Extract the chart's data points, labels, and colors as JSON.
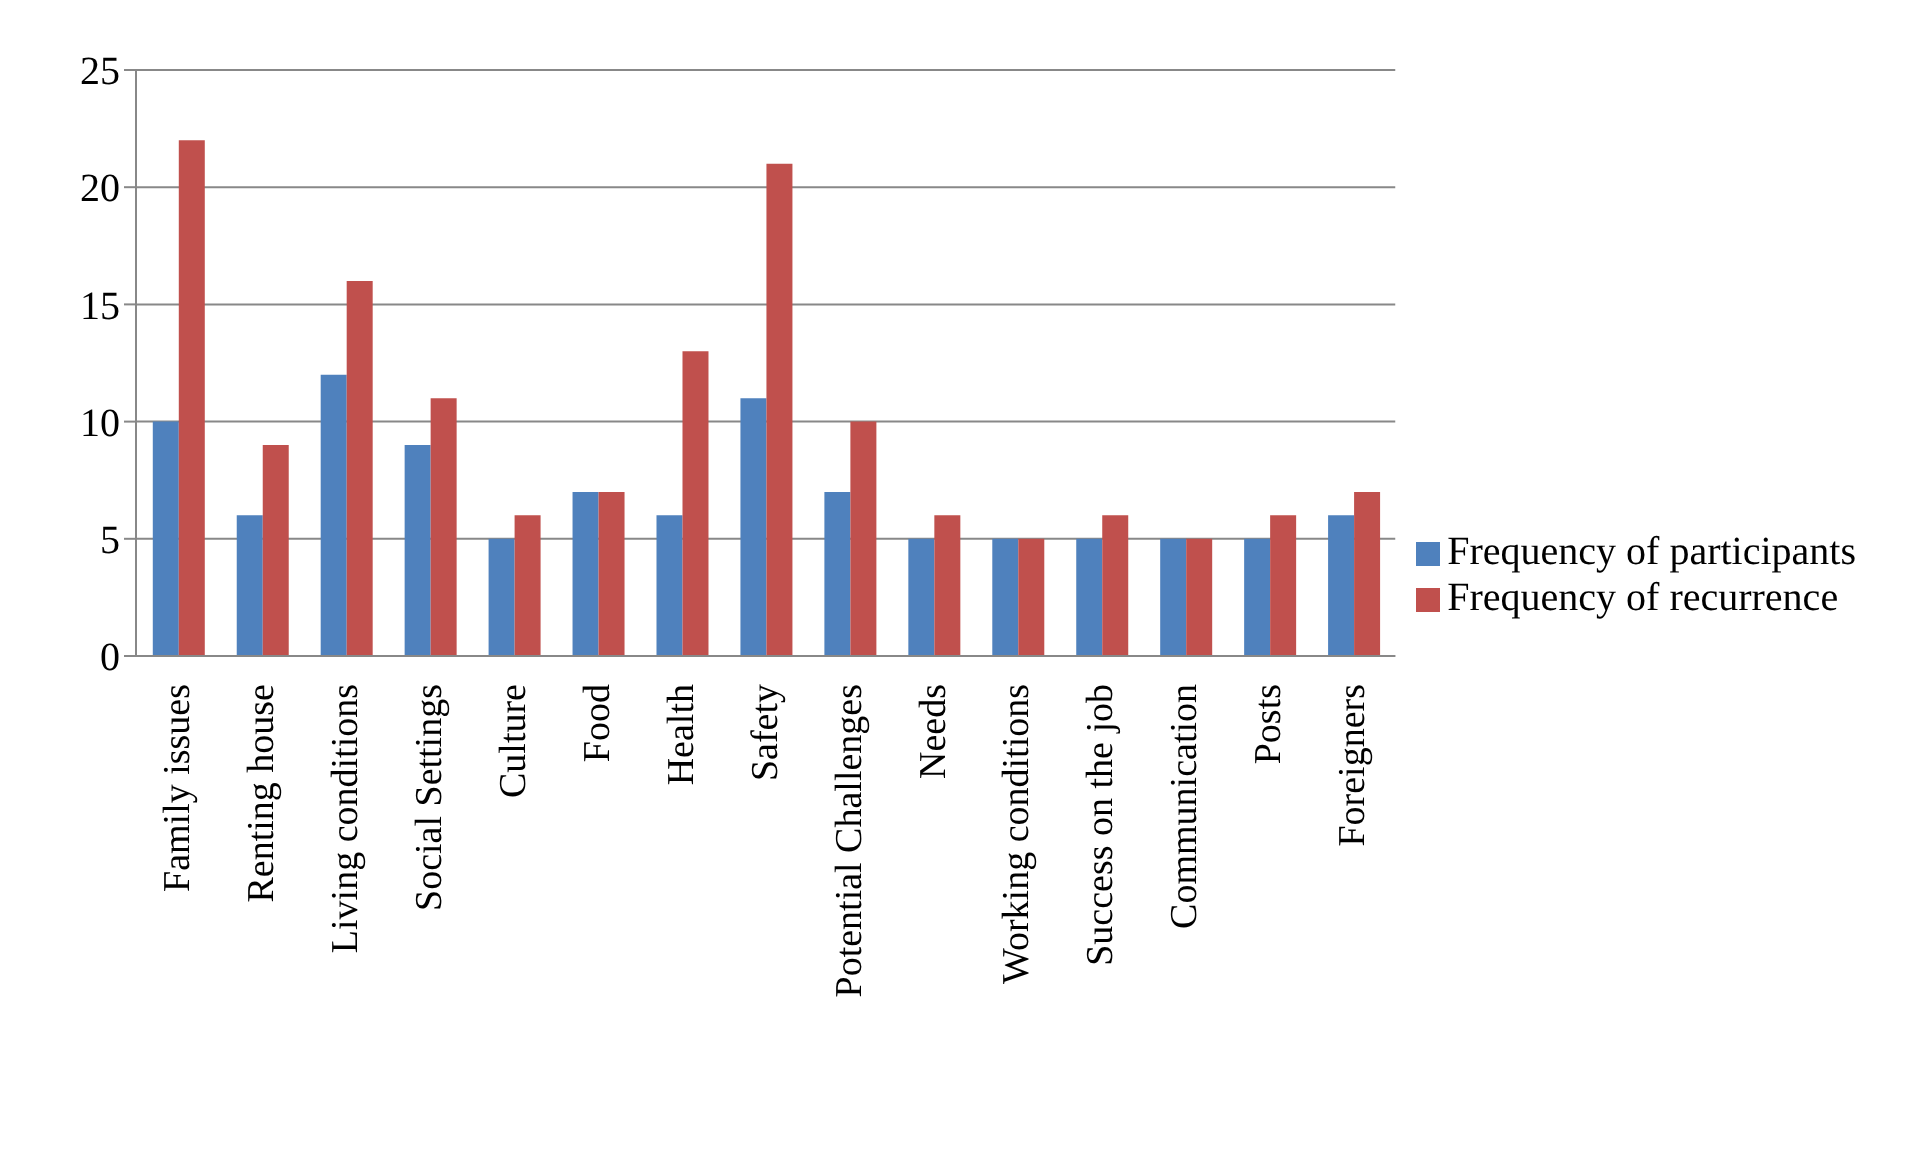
{
  "chart_data": {
    "type": "bar",
    "categories": [
      "Family issues",
      "Renting house",
      "Living conditions",
      "Social Settings",
      "Culture",
      "Food",
      "Health",
      "Safety",
      "Potential Challenges",
      "Needs",
      "Working conditions",
      "Success on the job",
      "Communication",
      "Posts",
      "Foreigners"
    ],
    "series": [
      {
        "name": "Frequency of participants",
        "color": "#4f81bd",
        "values": [
          10,
          6,
          12,
          9,
          5,
          7,
          6,
          11,
          7,
          5,
          5,
          5,
          5,
          5,
          6
        ]
      },
      {
        "name": "Frequency of recurrence",
        "color": "#c0504d",
        "values": [
          22,
          9,
          16,
          11,
          6,
          7,
          13,
          21,
          10,
          6,
          5,
          6,
          5,
          6,
          7
        ]
      }
    ],
    "ylim": [
      0,
      25
    ],
    "yticks": [
      0,
      5,
      10,
      15,
      20,
      25
    ],
    "grid": "y",
    "legend": "right"
  }
}
